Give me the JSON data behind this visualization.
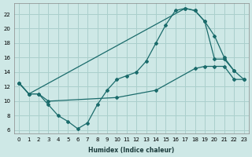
{
  "xlabel": "Humidex (Indice chaleur)",
  "xlim": [
    -0.5,
    23.5
  ],
  "ylim": [
    5.5,
    23.5
  ],
  "xticks": [
    0,
    1,
    2,
    3,
    4,
    5,
    6,
    7,
    8,
    9,
    10,
    11,
    12,
    13,
    14,
    15,
    16,
    17,
    18,
    19,
    20,
    21,
    22,
    23
  ],
  "yticks": [
    6,
    8,
    10,
    12,
    14,
    16,
    18,
    20,
    22
  ],
  "background_color": "#cee8e6",
  "grid_color": "#aacfcc",
  "line_color": "#1a6b6b",
  "line1_x": [
    0,
    1,
    2,
    3,
    4,
    5,
    6,
    7,
    8,
    9,
    10,
    11,
    12,
    13,
    14,
    15,
    16,
    17,
    18,
    19,
    20,
    21,
    22
  ],
  "line1_y": [
    12.5,
    11.0,
    11.0,
    9.5,
    8.0,
    7.2,
    6.2,
    7.0,
    9.5,
    11.5,
    13.0,
    13.5,
    14.0,
    15.5,
    18.0,
    20.5,
    22.5,
    22.8,
    22.5,
    21.0,
    15.8,
    15.8,
    14.2
  ],
  "line2_x": [
    0,
    1,
    17,
    18,
    19,
    20,
    21,
    22,
    23
  ],
  "line2_y": [
    12.5,
    11.0,
    22.8,
    22.5,
    21.0,
    19.0,
    16.0,
    14.2,
    13.0
  ],
  "line3_x": [
    0,
    1,
    2,
    3,
    10,
    14,
    18,
    19,
    20,
    21,
    22,
    23
  ],
  "line3_y": [
    12.5,
    11.0,
    11.0,
    10.0,
    10.5,
    11.5,
    14.5,
    14.8,
    14.8,
    14.8,
    13.0,
    13.0
  ]
}
